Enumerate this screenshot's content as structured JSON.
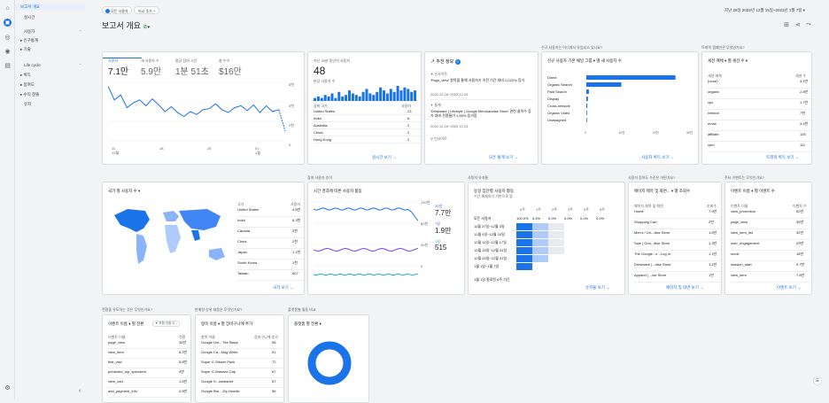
{
  "nav": {
    "items": [
      "보고서 개요",
      "실시간",
      "사용자",
      "인구통계",
      "기술",
      "Life cycle",
      "획득",
      "참여도",
      "수익 창출",
      "유지"
    ],
    "collapse_icon": "chevron-left-icon"
  },
  "header": {
    "chip1": "모든 사용자",
    "chip2": "비교 추가 +",
    "date_range": "지난 28일 2022년 12월 15일~2023년 1월 7일 ▾",
    "title": "보고서 개요"
  },
  "kpi": {
    "tabs": [
      {
        "label": "사용자",
        "value": "7.1만"
      },
      {
        "label": "새 사용자 수",
        "value": "5.9만"
      },
      {
        "label": "평균 참여 시간",
        "value": "1분 51초"
      },
      {
        "label": "총 수익",
        "value": "$16만"
      }
    ],
    "y_ticks": [
      "6천",
      "4천",
      "2천",
      "0"
    ],
    "x_ticks": [
      "11\n12월",
      "18",
      "25",
      "01\n1월"
    ],
    "chart_data": {
      "type": "line",
      "values": [
        5600,
        4200,
        4700,
        3400,
        3900,
        4200,
        3600,
        4300,
        3700,
        3000,
        3500,
        2900,
        2500,
        3000,
        2700,
        3200,
        3300,
        3800,
        3200,
        2900,
        3400,
        3600,
        3100,
        3700,
        2900,
        3600,
        3000,
        3200,
        1000
      ]
    }
  },
  "realtime": {
    "title": "지난 30분 동안의 사용자",
    "value": "48",
    "sub": "분당 사용자 수",
    "col1": "상위 국가",
    "col2": "사용자",
    "rows": [
      [
        "United States",
        "23"
      ],
      [
        "India",
        "6"
      ],
      [
        "Australia",
        "2"
      ],
      [
        "China",
        "2"
      ],
      [
        "Hong Kong",
        "2"
      ]
    ],
    "link": "실시간 보기 →",
    "bars": [
      2,
      3,
      2,
      4,
      3,
      5,
      2,
      6,
      3,
      4,
      7,
      5,
      4,
      3,
      6,
      8,
      5,
      4,
      6,
      9,
      7,
      5,
      8,
      6,
      10,
      7,
      9,
      8,
      6,
      7
    ]
  },
  "insights": {
    "title": "추천 정보",
    "badge": "9",
    "tag1": "인사이트",
    "text1": "'Page_view' 항목을 통해 사용자가 이전 기간 대비 2,022% 증가",
    "date1": "2022.12.16~2022.12.24",
    "tag2": "통계",
    "text2": "'Drinkware | Lifestyle | Google Merchandise Store' 관련 클릭수 증가 대비 전환율이 1.55% 증가함",
    "date2": "2022.12.16~2022.12.24",
    "tag3": "인사이트",
    "link": "모든 통계 보기 →"
  },
  "acquisition": {
    "section_label": "신규 사용자는 어디에서 유입되고 있나요?",
    "title": "신규 사용자 기본 채널 그룹 ▾ 별 새 사용자 수",
    "link": "사용자 획득 보기 →",
    "x_ticks": [
      "0",
      "10천",
      "20천",
      "30천"
    ],
    "chart_data": {
      "type": "bar",
      "categories": [
        "Direct",
        "Organic Search",
        "Paid Search",
        "Display",
        "Cross-network",
        "Organic Video",
        "Unassigned"
      ],
      "values": [
        28000,
        11000,
        800,
        500,
        300,
        200,
        150
      ]
    }
  },
  "traffic": {
    "section_label": "트래픽 캠페인은 무엇인가요?",
    "title": "세션 매체 ▾ 별 세션 수 ▾",
    "col1": "세션 매체",
    "col2": "세션 수",
    "rows": [
      [
        "(none)",
        "4.1만"
      ],
      [
        "organic",
        "2.8만"
      ],
      [
        "cpc",
        "1.7만"
      ],
      [
        "referral",
        "7천"
      ],
      [
        "email",
        "3.4천"
      ],
      [
        "affiliate",
        "126"
      ],
      [
        "cpm",
        "111"
      ]
    ],
    "link": "트래픽 획득 보기 →"
  },
  "map": {
    "section_label": "",
    "title": "국가 별 사용자 수 ▾",
    "col1": "국가",
    "col2": "사용자",
    "rows": [
      [
        "United States",
        "4.8만"
      ],
      [
        "India",
        "6.3천"
      ],
      [
        "Canada",
        "3천"
      ],
      [
        "China",
        "2천"
      ],
      [
        "Japan",
        "1.1천"
      ],
      [
        "South Korea",
        "1천"
      ],
      [
        "Taiwan",
        "607"
      ]
    ],
    "link": "국가 보기 →"
  },
  "activity": {
    "section_label": "참여 사용자 추이",
    "title": "시간 경과에 따른 사용자 활동",
    "legend": [
      {
        "label": "30일",
        "value": "7.7만"
      },
      {
        "label": "7일",
        "value": "1.9만"
      },
      {
        "label": "1일",
        "value": "515"
      }
    ],
    "y_ticks": [
      "120천",
      "80천",
      "40천",
      "0"
    ]
  },
  "cohort": {
    "section_label": "사용자 유지율",
    "title": "동일 집단별 사용자 활동",
    "sub": "기간 해제하기 기반으로 함",
    "cols": [
      "0주",
      "1주",
      "2주",
      "3주",
      "4주",
      "5주"
    ],
    "row0": [
      "모든 사용자",
      "100.0%",
      "3.4%",
      "0.0%",
      "0.0%",
      "0.0%",
      "0.0%"
    ],
    "rows": [
      "11월 27일~12월 3일",
      "12월 4일~12월 10일",
      "12월 11일~12월 17일",
      "12월 18일~12월 24일",
      "12월 25일~12월 31일",
      "1월 1일~1월 7일"
    ],
    "footer": "1월 1일 종료된 6주 기간",
    "link": "유지율 보기 →"
  },
  "pages": {
    "section_label": "사용자 참여도 수준은 어떤가요?",
    "title": "페이지 제목 및 화면... ▾ 별 조회수",
    "col1": "페이지 제목 및 화면",
    "col2": "조회수",
    "rows": [
      [
        "Home",
        "7.9만"
      ],
      [
        "Shopping Cart",
        "2만"
      ],
      [
        "Men's / Un...dise Store",
        "1.6만"
      ],
      [
        "Sale | Goo...dise Store",
        "1.3만"
      ],
      [
        "The Google...e - Log In",
        "1.1만"
      ],
      [
        "Drinkware |...dise Store",
        "1.1만"
      ],
      [
        "Apparel | ...ise Store",
        "1만"
      ]
    ],
    "link": "페이지 및 화면 보기 →"
  },
  "events": {
    "section_label": "주요 이벤트는 무엇인가요?",
    "title": "이벤트 이름 ▾ 별 이벤트 수",
    "col1": "이벤트 이름",
    "col2": "이벤트 수",
    "rows": [
      [
        "view_promotion",
        "62만"
      ],
      [
        "page_view",
        "35만"
      ],
      [
        "view_item_list",
        "32만"
      ],
      [
        "user_engagement",
        "29만"
      ],
      [
        "scroll",
        "18만"
      ],
      [
        "session_start",
        "9.7만"
      ],
      [
        "view_item",
        "7.8만"
      ]
    ],
    "link": "이벤트 보기 →"
  },
  "conversions": {
    "section_label": "전환을 유도하는 것은 무엇인가요?",
    "title": "이벤트 이름 ▾ 별 전환",
    "filter": "▼ 포함 전환 이...",
    "col1": "이벤트 이름",
    "col2": "전환",
    "rows": [
      [
        "page_view",
        "35만"
      ],
      [
        "view_item",
        "6.2만"
      ],
      [
        "first_visit",
        "5.8만"
      ],
      [
        "predicted_top_spenders",
        "4만"
      ],
      [
        "view_cart",
        "1.5만"
      ],
      [
        "add_payment_info",
        "4.8만"
      ]
    ]
  },
  "items": {
    "section_label": "판매량 상위 제품은 무엇인가요?",
    "title": "항목 이름 ▾ 별 장바구니에 추가",
    "col1": "항목 이름",
    "col2": "장바구니에 추가",
    "rows": [
      [
        "Google Uni... Tee Black",
        "98"
      ],
      [
        "Google Ca...Mug White",
        "91"
      ],
      [
        "Super G Sticker Pack",
        "72"
      ],
      [
        "Super G Washed Cap",
        "67"
      ],
      [
        "Google S...weatshirt",
        "57"
      ],
      [
        "Google Bla... Zip Hoodie",
        "56"
      ]
    ]
  },
  "platform": {
    "section_label": "플랫폼별 활동 비교",
    "title": "플랫폼 별 전환 ▾"
  }
}
